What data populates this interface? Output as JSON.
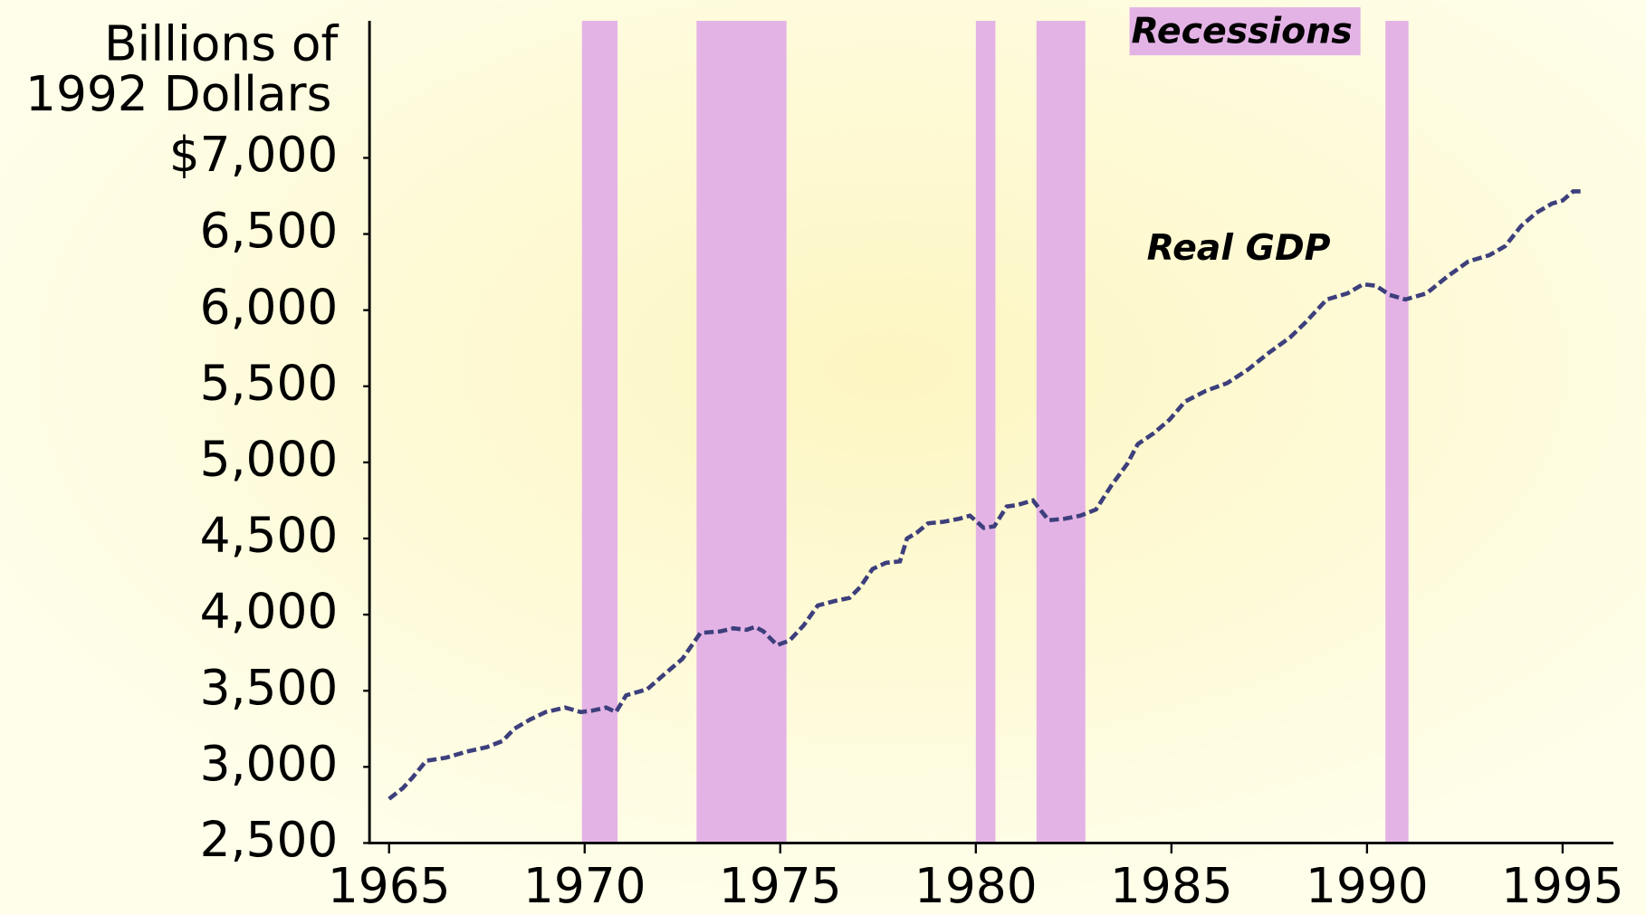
{
  "chart_data": {
    "type": "line",
    "ylabel": [
      "Billions of",
      "1992 Dollars"
    ],
    "recession_label": "Recessions",
    "recessions": [
      [
        1969.93,
        1970.84
      ],
      [
        1972.86,
        1975.16
      ],
      [
        1980.0,
        1980.5
      ],
      [
        1981.55,
        1982.8
      ],
      [
        1990.47,
        1991.06
      ]
    ],
    "recession_color": "#e3b3e6",
    "xlim": [
      1964.5,
      1996.3
    ],
    "xticks": [
      1965,
      1970,
      1975,
      1980,
      1985,
      1990,
      1995
    ],
    "ylim": [
      2500,
      7900
    ],
    "yticks": [
      {
        "value": 2500,
        "label": "2,500"
      },
      {
        "value": 3000,
        "label": "3,000"
      },
      {
        "value": 3500,
        "label": "3,500"
      },
      {
        "value": 4000,
        "label": "4,000"
      },
      {
        "value": 4500,
        "label": "4,500"
      },
      {
        "value": 5000,
        "label": "5,000"
      },
      {
        "value": 5500,
        "label": "5,500"
      },
      {
        "value": 6000,
        "label": "6,000"
      },
      {
        "value": 6500,
        "label": "6,500"
      },
      {
        "value": 7000,
        "label": "$7,000"
      }
    ],
    "x": [
      1965.0,
      1965.35,
      1965.6,
      1965.95,
      1966.45,
      1966.98,
      1967.5,
      1967.9,
      1968.2,
      1968.6,
      1969.0,
      1969.5,
      1969.9,
      1970.2,
      1970.55,
      1970.8,
      1971.06,
      1971.6,
      1972.0,
      1972.5,
      1972.96,
      1973.47,
      1973.8,
      1974.14,
      1974.36,
      1974.57,
      1974.92,
      1975.24,
      1975.6,
      1975.96,
      1976.4,
      1976.77,
      1977.04,
      1977.36,
      1977.7,
      1978.06,
      1978.24,
      1978.5,
      1978.78,
      1979.18,
      1979.58,
      1979.85,
      1980.2,
      1980.47,
      1980.79,
      1981.06,
      1981.46,
      1981.86,
      1982.27,
      1982.67,
      1983.07,
      1983.47,
      1983.87,
      1984.14,
      1984.54,
      1984.95,
      1985.35,
      1985.88,
      1986.42,
      1986.96,
      1987.49,
      1988.03,
      1988.43,
      1988.97,
      1989.5,
      1989.9,
      1990.23,
      1990.58,
      1990.98,
      1991.52,
      1992.05,
      1992.59,
      1993.12,
      1993.53,
      1993.93,
      1994.33,
      1994.73,
      1995.0,
      1995.27,
      1995.48
    ],
    "series": [
      {
        "name": "Real GDP",
        "color": "#3d3f7c",
        "values": [
          2790,
          2860,
          2930,
          3040,
          3060,
          3100,
          3130,
          3170,
          3250,
          3310,
          3360,
          3390,
          3360,
          3370,
          3390,
          3360,
          3470,
          3510,
          3600,
          3710,
          3880,
          3890,
          3910,
          3900,
          3920,
          3890,
          3800,
          3830,
          3930,
          4060,
          4090,
          4110,
          4180,
          4300,
          4340,
          4350,
          4500,
          4540,
          4600,
          4610,
          4630,
          4650,
          4570,
          4580,
          4710,
          4720,
          4750,
          4620,
          4630,
          4650,
          4690,
          4850,
          4990,
          5120,
          5190,
          5280,
          5400,
          5470,
          5520,
          5610,
          5720,
          5820,
          5920,
          6070,
          6110,
          6170,
          6160,
          6100,
          6070,
          6110,
          6220,
          6320,
          6360,
          6420,
          6550,
          6640,
          6700,
          6720,
          6780,
          6780
        ]
      }
    ]
  }
}
